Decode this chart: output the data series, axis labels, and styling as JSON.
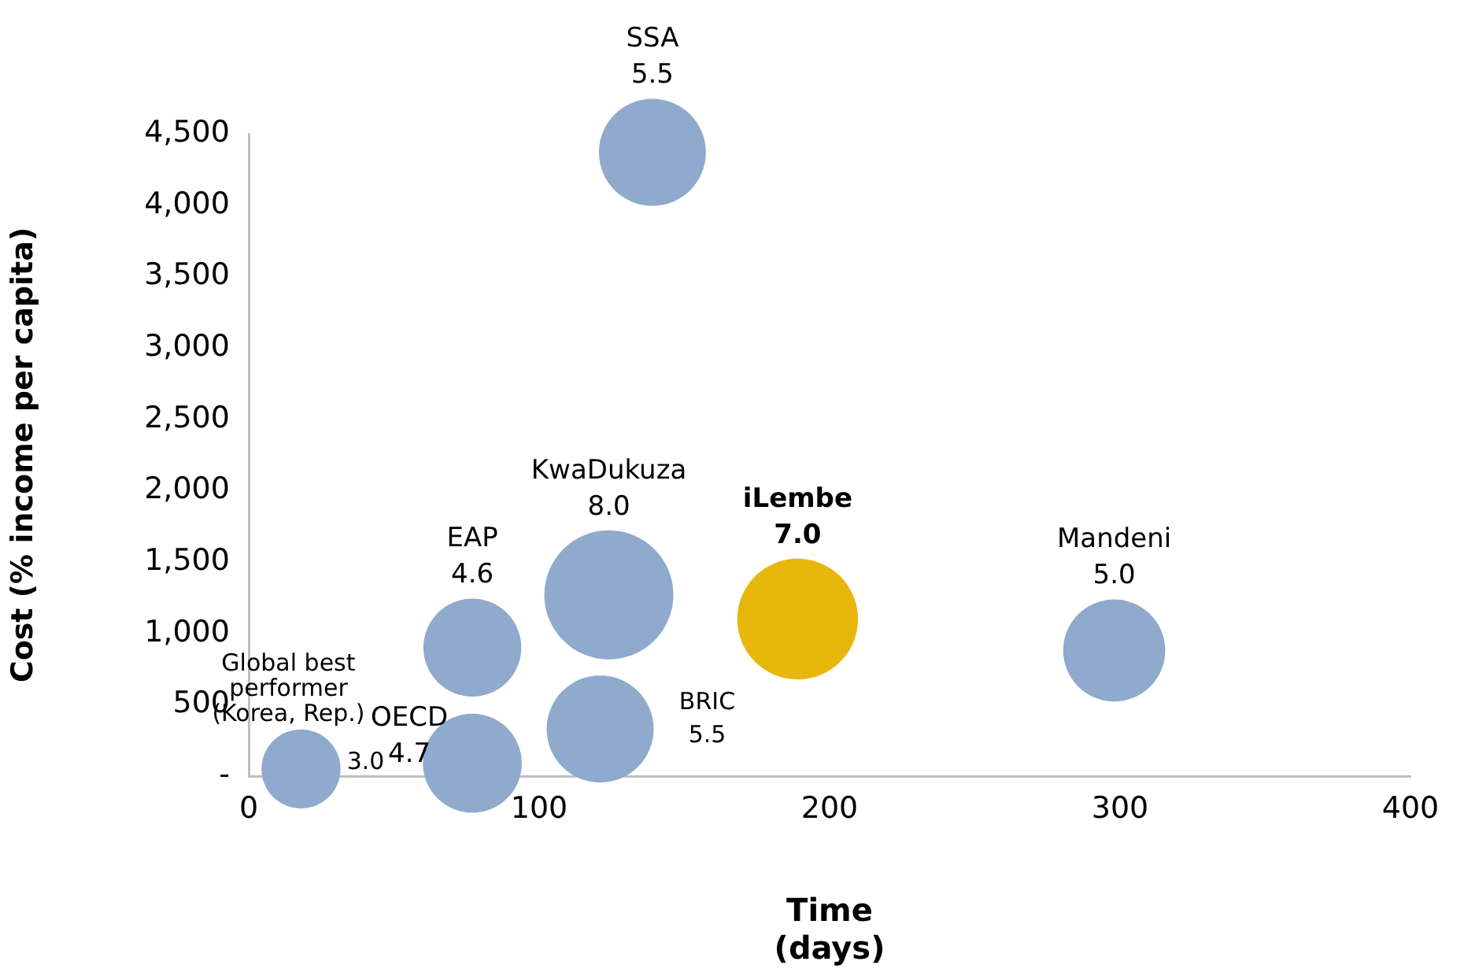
{
  "chart_data": {
    "type": "bubble",
    "xlabel": "Time (days)",
    "ylabel": "Cost (% income per capita)",
    "xlim": [
      0,
      400
    ],
    "xticks": [
      0,
      100,
      200,
      300,
      400
    ],
    "ylim": [
      0,
      4500
    ],
    "yticks": [
      {
        "value": 0,
        "label": "-"
      },
      {
        "value": 500,
        "label": "500"
      },
      {
        "value": 1000,
        "label": "1,000"
      },
      {
        "value": 1500,
        "label": "1,500"
      },
      {
        "value": 2000,
        "label": "2,000"
      },
      {
        "value": 2500,
        "label": "2,500"
      },
      {
        "value": 3000,
        "label": "3,000"
      },
      {
        "value": 3500,
        "label": "3,500"
      },
      {
        "value": 4000,
        "label": "4,000"
      },
      {
        "value": 4500,
        "label": "4,500"
      }
    ],
    "grid": false,
    "legend": false,
    "series": [
      {
        "name": "Global best performer (Korea, Rep.)",
        "color": "#8faacc",
        "x": [
          18
        ],
        "values": [
          50
        ],
        "sizes": [
          3.0
        ],
        "value_labels": [
          "3.0"
        ]
      },
      {
        "name": "OECD",
        "color": "#8faacc",
        "x": [
          77
        ],
        "values": [
          90
        ],
        "sizes": [
          4.7
        ],
        "value_labels": [
          "4.7"
        ]
      },
      {
        "name": "EAP",
        "color": "#8faacc",
        "x": [
          77
        ],
        "values": [
          900
        ],
        "sizes": [
          4.6
        ],
        "value_labels": [
          "4.6"
        ]
      },
      {
        "name": "BRIC",
        "color": "#8faacc",
        "x": [
          121
        ],
        "values": [
          330
        ],
        "sizes": [
          5.5
        ],
        "value_labels": [
          "5.5"
        ]
      },
      {
        "name": "KwaDukuza",
        "color": "#8faacc",
        "x": [
          124
        ],
        "values": [
          1270
        ],
        "sizes": [
          8.0
        ],
        "value_labels": [
          "8.0"
        ]
      },
      {
        "name": "iLembe",
        "color": "#e8b70c",
        "x": [
          189
        ],
        "values": [
          1100
        ],
        "sizes": [
          7.0
        ],
        "value_labels": [
          "7.0"
        ]
      },
      {
        "name": "Mandeni",
        "color": "#8faacc",
        "x": [
          298
        ],
        "values": [
          880
        ],
        "sizes": [
          5.0
        ],
        "value_labels": [
          "5.0"
        ]
      },
      {
        "name": "SSA",
        "color": "#8faacc",
        "x": [
          139
        ],
        "values": [
          4370
        ],
        "sizes": [
          5.5
        ],
        "value_labels": [
          "5.5"
        ]
      }
    ]
  }
}
